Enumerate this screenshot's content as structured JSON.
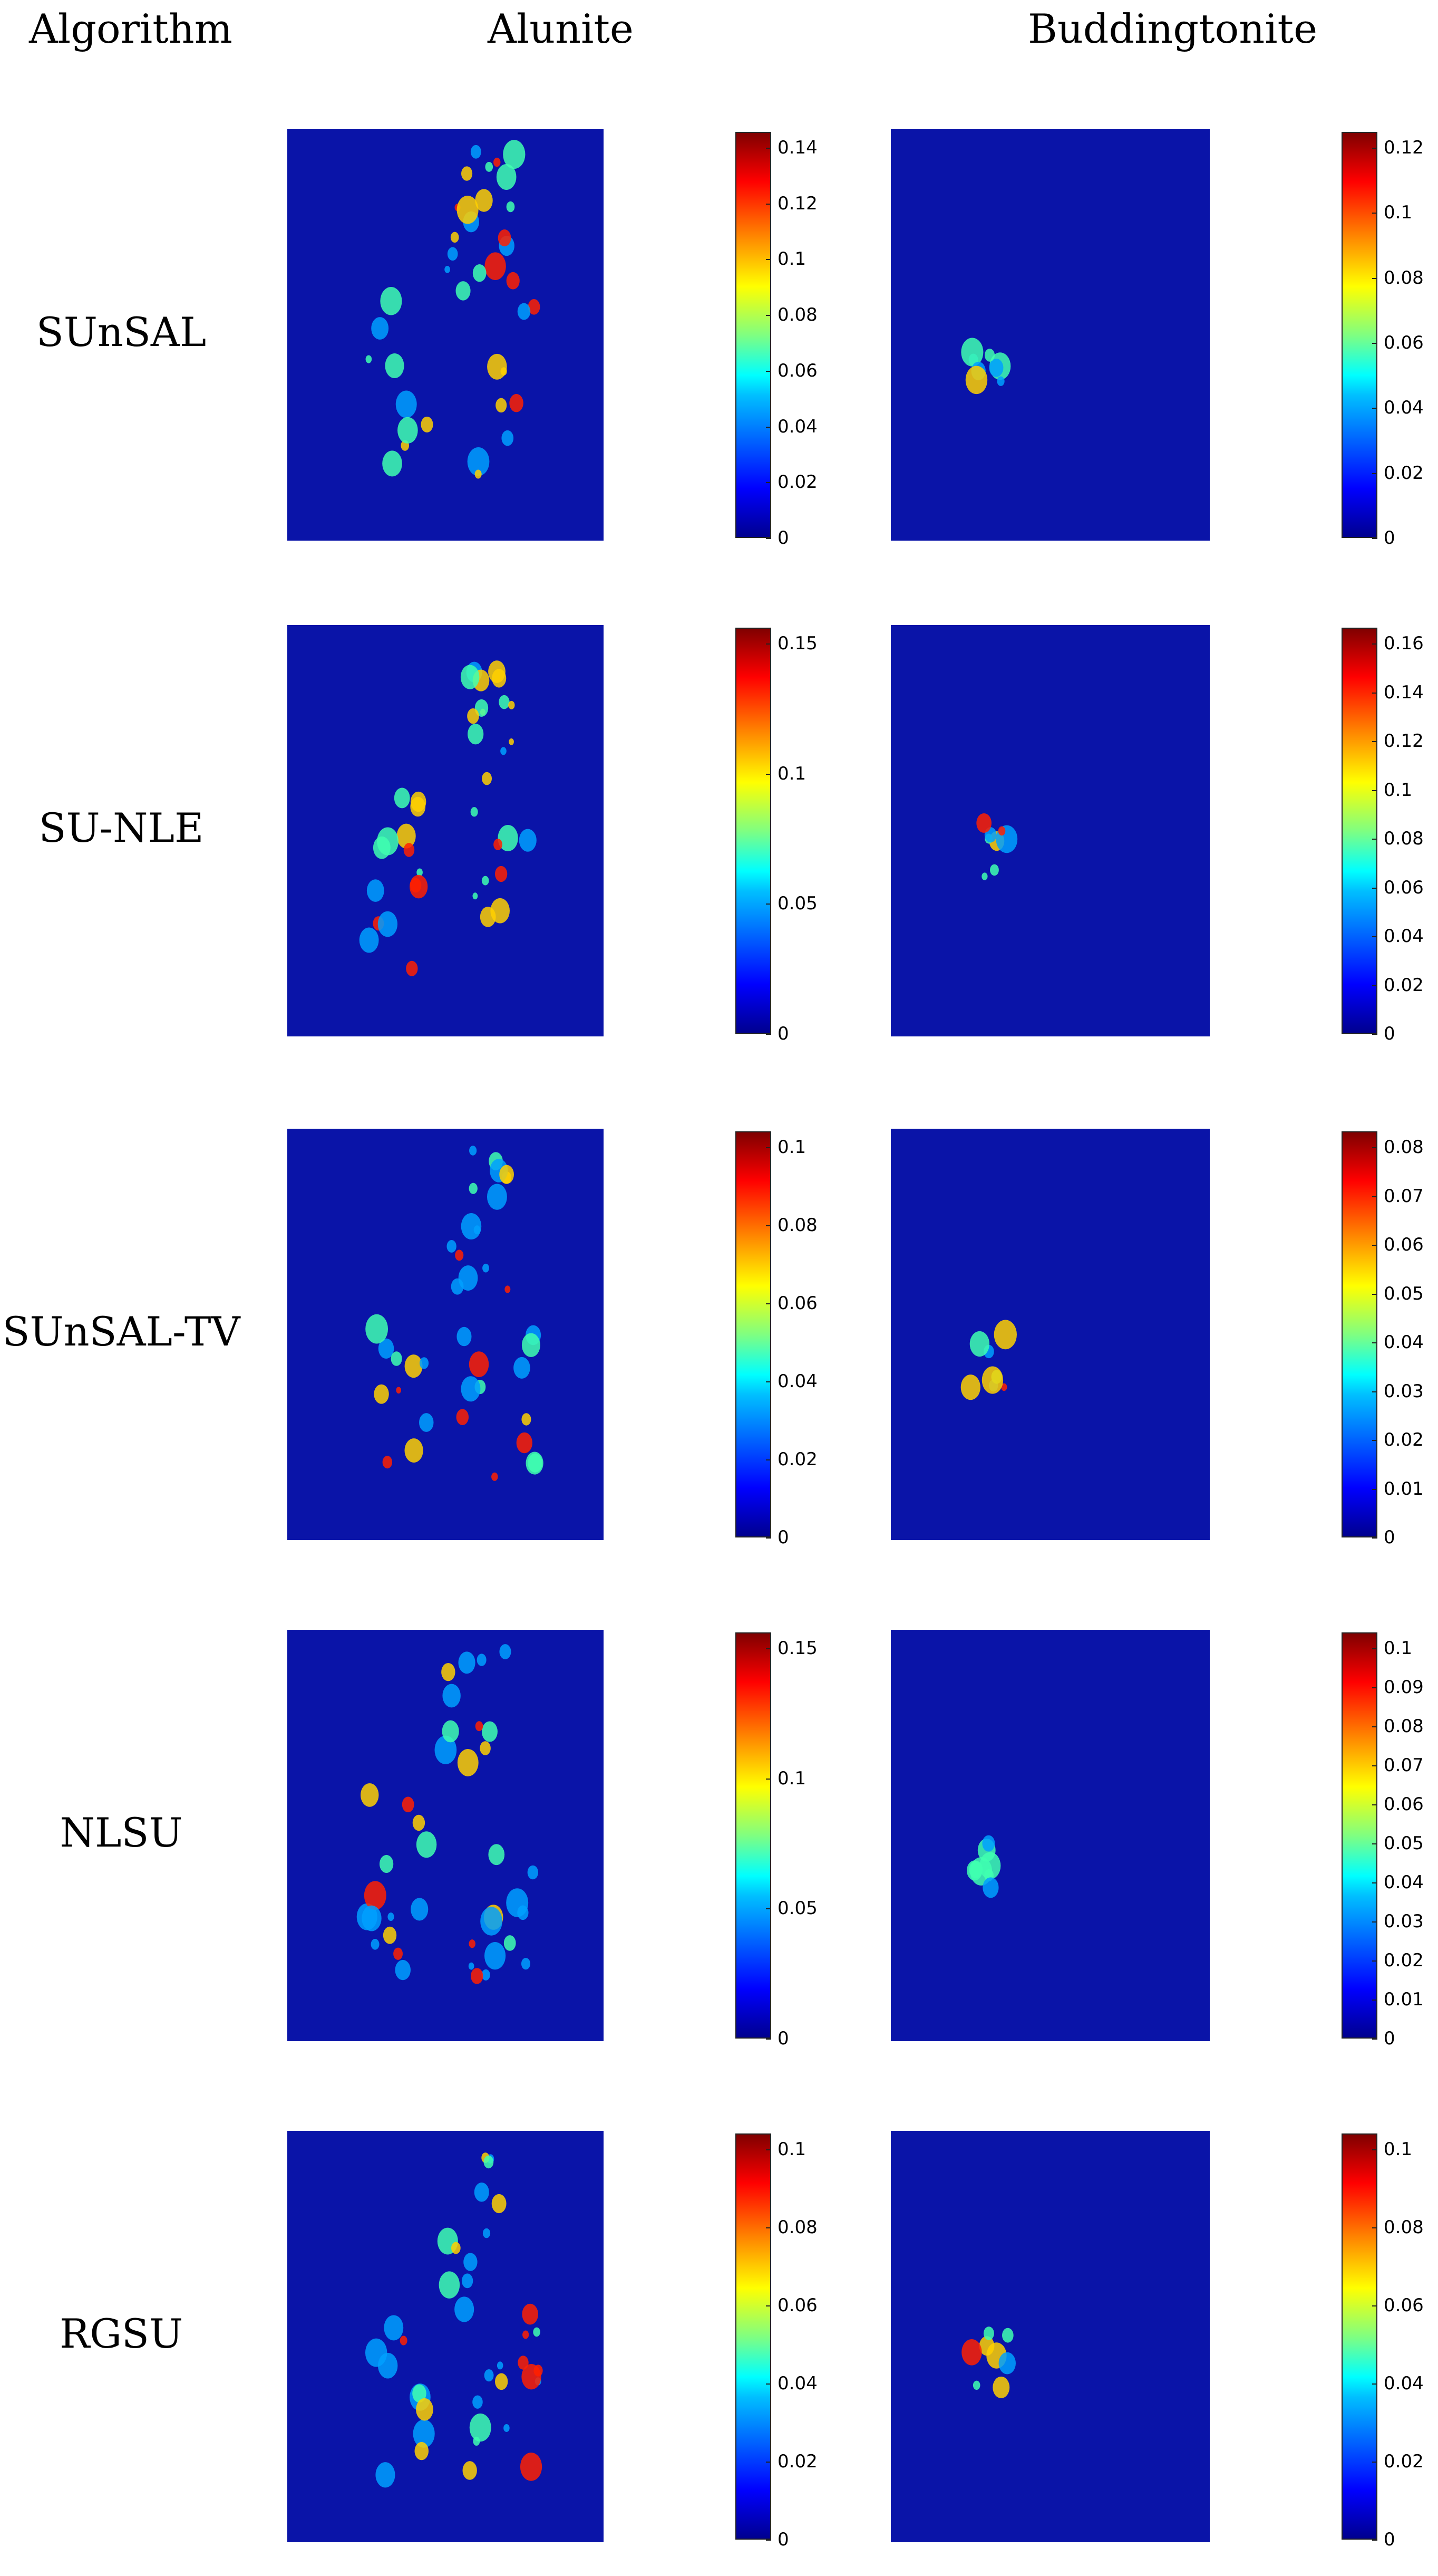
{
  "headers": {
    "algorithm": "Algorithm",
    "alunite": "Alunite",
    "buddingtonite": "Buddingtonite"
  },
  "rows": [
    {
      "algorithm": "SUnSAL",
      "alunite_ticks": [
        "0.14",
        "0.12",
        "0.1",
        "0.08",
        "0.06",
        "0.04",
        "0.02",
        "0"
      ],
      "buddingtonite_ticks": [
        "0.12",
        "0.1",
        "0.08",
        "0.06",
        "0.04",
        "0.02",
        "0"
      ]
    },
    {
      "algorithm": "SU-NLE",
      "alunite_ticks": [
        "0.15",
        "0.1",
        "0.05",
        "0"
      ],
      "buddingtonite_ticks": [
        "0.16",
        "0.14",
        "0.12",
        "0.1",
        "0.08",
        "0.06",
        "0.04",
        "0.02",
        "0"
      ]
    },
    {
      "algorithm": "SUnSAL-TV",
      "alunite_ticks": [
        "0.1",
        "0.08",
        "0.06",
        "0.04",
        "0.02",
        "0"
      ],
      "buddingtonite_ticks": [
        "0.08",
        "0.07",
        "0.06",
        "0.05",
        "0.04",
        "0.03",
        "0.02",
        "0.01",
        "0"
      ]
    },
    {
      "algorithm": "NLSU",
      "alunite_ticks": [
        "0.15",
        "0.1",
        "0.05",
        "0"
      ],
      "buddingtonite_ticks": [
        "0.1",
        "0.09",
        "0.08",
        "0.07",
        "0.06",
        "0.05",
        "0.04",
        "0.03",
        "0.02",
        "0.01",
        "0"
      ]
    },
    {
      "algorithm": "RGSU",
      "alunite_ticks": [
        "0.1",
        "0.08",
        "0.06",
        "0.04",
        "0.02",
        "0"
      ],
      "buddingtonite_ticks": [
        "0.1",
        "0.08",
        "0.06",
        "0.04",
        "0.02",
        "0"
      ]
    }
  ],
  "colormap": [
    "#00008f",
    "#0000ff",
    "#00bfff",
    "#00ffff",
    "#80ff80",
    "#ffff00",
    "#ff8000",
    "#ff0000",
    "#800000"
  ]
}
